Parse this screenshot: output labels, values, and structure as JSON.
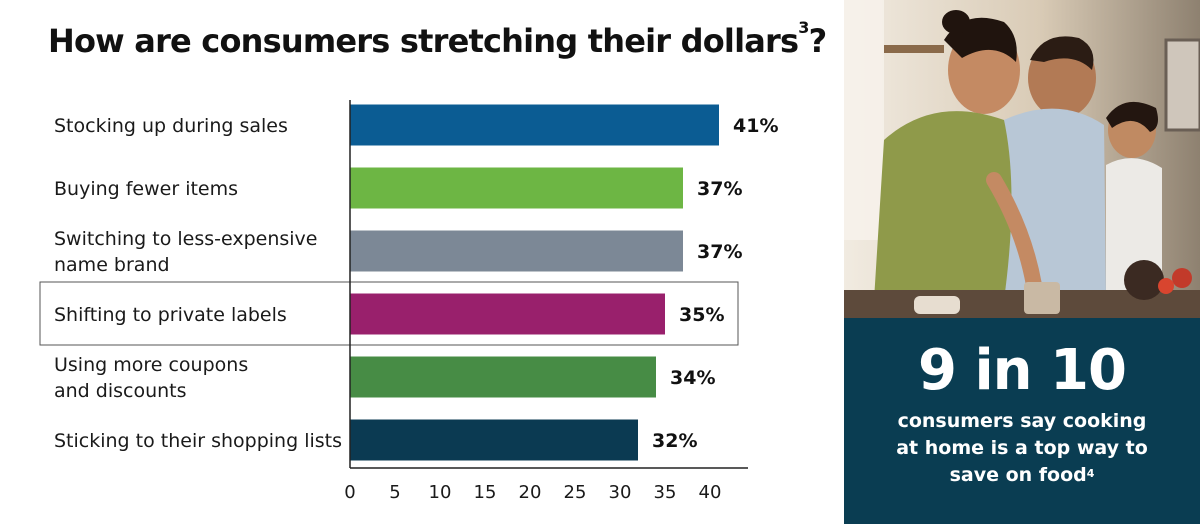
{
  "title": "How are consumers stretching their dollars",
  "title_ref": "3",
  "chart_data": {
    "type": "bar",
    "orientation": "horizontal",
    "categories": [
      [
        "Stocking up during sales"
      ],
      [
        "Buying fewer items"
      ],
      [
        "Switching to less-expensive",
        "name brand"
      ],
      [
        "Shifting to private labels"
      ],
      [
        "Using more coupons",
        "and discounts"
      ],
      [
        "Sticking to their shopping lists"
      ]
    ],
    "values": [
      41,
      37,
      37,
      35,
      34,
      32
    ],
    "value_labels": [
      "41%",
      "37%",
      "37%",
      "35%",
      "34%",
      "32%"
    ],
    "colors": [
      "#0b5c93",
      "#6db644",
      "#7c8896",
      "#99206c",
      "#478c45",
      "#0b3a52"
    ],
    "xticks": [
      0,
      5,
      10,
      15,
      20,
      25,
      30,
      35,
      40
    ],
    "xlim": [
      0,
      42
    ],
    "highlighted_category_index": 3,
    "grid": false
  },
  "panel": {
    "big_number": "9 in 10",
    "statement": "consumers say cooking at home is a top way to save on food",
    "statement_ref": "4"
  },
  "colors": {
    "panel_bg": "#0a3d52",
    "highlight_border": "#555555"
  }
}
